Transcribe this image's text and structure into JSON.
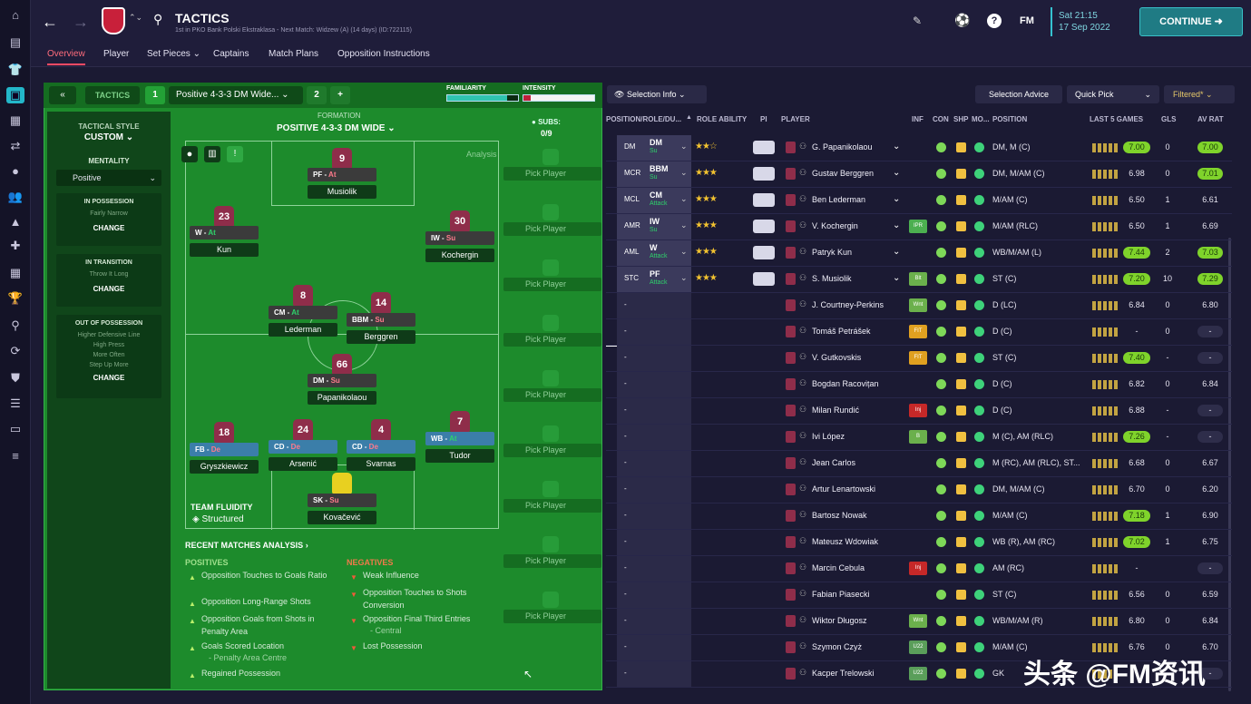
{
  "left_rail_icons": [
    "home-icon",
    "inbox-icon",
    "squad-icon",
    "tactics-icon",
    "report-icon",
    "transfers-icon",
    "ball-icon",
    "staff-icon",
    "training-icon",
    "medical-icon",
    "calendar-icon",
    "trophy-icon",
    "search-icon",
    "finance-icon",
    "club-icon",
    "scouting-icon",
    "ticket-icon",
    "menu-icon"
  ],
  "header": {
    "title": "TACTICS",
    "subtitle": "1st in PKO Bank Polski Ekstraklasa - Next Match: Widzew (A) (14 days) (ID:722115)",
    "fm_label": "FM",
    "time": "Sat 21:15",
    "date": "17 Sep 2022",
    "continue_label": "CONTINUE"
  },
  "nav_tabs": [
    "Overview",
    "Player",
    "Set Pieces",
    "Captains",
    "Match Plans",
    "Opposition Instructions"
  ],
  "tactics_bar": {
    "label": "TACTICS",
    "slot1": "1",
    "tactic_name": "Positive 4-3-3 DM Wide...",
    "slot2": "2",
    "add": "+",
    "familiarity": "FAMILIARITY",
    "intensity": "INTENSITY"
  },
  "style": {
    "tactical_style_label": "TACTICAL STYLE",
    "tactical_style_value": "CUSTOM",
    "mentality_label": "MENTALITY",
    "mentality_value": "Positive",
    "in_possession_label": "IN POSSESSION",
    "in_possession_text": "Fairly Narrow",
    "in_transition_label": "IN TRANSITION",
    "in_transition_text": "Throw It Long",
    "out_possession_label": "OUT OF POSSESSION",
    "out_possession_lines": [
      "Higher Defensive Line",
      "High Press",
      "More Often",
      "Step Up More"
    ],
    "change": "CHANGE"
  },
  "formation": {
    "label": "FORMATION",
    "value": "POSITIVE 4-3-3 DM WIDE",
    "subs_label": "SUBS:",
    "subs_value": "0/9",
    "analysis_label": "Analysis",
    "team_fluidity_label": "TEAM FLUIDITY",
    "team_fluidity_value": "Structured",
    "players": [
      {
        "num": "9",
        "role": "PF",
        "duty": "At",
        "name": "Musiolik",
        "color": "grey"
      },
      {
        "num": "23",
        "role": "W",
        "duty": "At",
        "name": "Kun",
        "color": "grey"
      },
      {
        "num": "30",
        "role": "IW",
        "duty": "Su",
        "name": "Kochergin",
        "color": "grey"
      },
      {
        "num": "8",
        "role": "CM",
        "duty": "At",
        "name": "Lederman",
        "color": "grey"
      },
      {
        "num": "14",
        "role": "BBM",
        "duty": "Su",
        "name": "Berggren",
        "color": "grey"
      },
      {
        "num": "66",
        "role": "DM",
        "duty": "Su",
        "name": "Papanikolaou",
        "color": "grey"
      },
      {
        "num": "18",
        "role": "FB",
        "duty": "De",
        "name": "Gryszkiewicz",
        "color": "blue"
      },
      {
        "num": "24",
        "role": "CD",
        "duty": "De",
        "name": "Arsenić",
        "color": "blue"
      },
      {
        "num": "4",
        "role": "CD",
        "duty": "De",
        "name": "Svarnas",
        "color": "blue"
      },
      {
        "num": "7",
        "role": "WB",
        "duty": "At",
        "name": "Tudor",
        "color": "blue"
      },
      {
        "num": "1",
        "role": "SK",
        "duty": "Su",
        "name": "Kovačević",
        "color": "grey"
      }
    ],
    "pick_player": "Pick Player"
  },
  "analysis": {
    "title": "RECENT MATCHES ANALYSIS",
    "positives_label": "POSITIVES",
    "positives": [
      "Opposition Touches to Goals Ratio",
      "Opposition Long-Range Shots",
      "Opposition Goals from Shots in Penalty Area",
      "Goals Scored Location",
      "- Penalty Area Centre",
      "Regained Possession"
    ],
    "negatives_label": "NEGATIVES",
    "negatives": [
      "Weak Influence",
      "Opposition Touches to Shots Conversion",
      "Opposition Final Third Entries",
      "- Central",
      "Lost Possession"
    ]
  },
  "table_toolbar": {
    "selection_info": "Selection Info",
    "selection_advice": "Selection Advice",
    "quick_pick": "Quick Pick",
    "filtered": "Filtered*"
  },
  "table_headers": [
    "POSITION/ROLE/DU...",
    "ROLE ABILITY",
    "PI",
    "PLAYER",
    "INF",
    "CON",
    "SHP",
    "MO...",
    "POSITION",
    "LAST 5 GAMES",
    "GLS",
    "AV RAT"
  ],
  "rows": [
    {
      "pos": "DM",
      "role": "DM",
      "duty": "Su",
      "stars": "★★☆",
      "name": "G. Papanikolaou",
      "inf": "",
      "position": "DM, M (C)",
      "avg": "7.00",
      "avg_hl": true,
      "gls": "0",
      "ar": "7.00",
      "ar_hl": true
    },
    {
      "pos": "MCR",
      "role": "BBM",
      "duty": "Su",
      "stars": "★★★",
      "name": "Gustav Berggren",
      "inf": "",
      "position": "DM, M/AM (C)",
      "avg": "6.98",
      "avg_hl": false,
      "gls": "0",
      "ar": "7.01",
      "ar_hl": true
    },
    {
      "pos": "MCL",
      "role": "CM",
      "duty": "Attack",
      "stars": "★★★",
      "name": "Ben Lederman",
      "inf": "",
      "position": "M/AM (C)",
      "avg": "6.50",
      "avg_hl": false,
      "gls": "1",
      "ar": "6.61",
      "ar_hl": false
    },
    {
      "pos": "AMR",
      "role": "IW",
      "duty": "Su",
      "stars": "★★★",
      "name": "V. Kochergin",
      "inf": "IPR",
      "position": "M/AM (RLC)",
      "avg": "6.50",
      "avg_hl": false,
      "gls": "1",
      "ar": "6.69",
      "ar_hl": false
    },
    {
      "pos": "AML",
      "role": "W",
      "duty": "Attack",
      "stars": "★★★",
      "name": "Patryk Kun",
      "inf": "",
      "position": "WB/M/AM (L)",
      "avg": "7.44",
      "avg_hl": true,
      "gls": "2",
      "ar": "7.03",
      "ar_hl": true
    },
    {
      "pos": "STC",
      "role": "PF",
      "duty": "Attack",
      "stars": "★★★",
      "name": "S. Musiolik",
      "inf": "Blt",
      "position": "ST (C)",
      "avg": "7.20",
      "avg_hl": true,
      "gls": "10",
      "ar": "7.29",
      "ar_hl": true
    },
    {
      "pos": "-",
      "role": "",
      "duty": "",
      "stars": "",
      "name": "J. Courtney-Perkins",
      "inf": "Wnt",
      "position": "D (LC)",
      "avg": "6.84",
      "avg_hl": false,
      "gls": "0",
      "ar": "6.80",
      "ar_hl": false
    },
    {
      "pos": "-",
      "role": "",
      "duty": "",
      "stars": "",
      "name": "Tomáš Petrášek",
      "inf": "FIT",
      "position": "D (C)",
      "avg": "-",
      "avg_hl": false,
      "gls": "0",
      "ar": "-",
      "ar_hl": false
    },
    {
      "pos": "-",
      "role": "",
      "duty": "",
      "stars": "",
      "name": "V. Gutkovskis",
      "inf": "FIT",
      "position": "ST (C)",
      "avg": "7.40",
      "avg_hl": true,
      "gls": "-",
      "ar": "-",
      "ar_hl": false
    },
    {
      "pos": "-",
      "role": "",
      "duty": "",
      "stars": "",
      "name": "Bogdan Racovițan",
      "inf": "",
      "position": "D (C)",
      "avg": "6.82",
      "avg_hl": false,
      "gls": "0",
      "ar": "6.84",
      "ar_hl": false
    },
    {
      "pos": "-",
      "role": "",
      "duty": "",
      "stars": "",
      "name": "Milan Rundić",
      "inf": "Inj",
      "position": "D (C)",
      "avg": "6.88",
      "avg_hl": false,
      "gls": "-",
      "ar": "-",
      "ar_hl": false
    },
    {
      "pos": "-",
      "role": "",
      "duty": "",
      "stars": "",
      "name": "Ivi López",
      "inf": "B",
      "position": "M (C), AM (RLC)",
      "avg": "7.26",
      "avg_hl": true,
      "gls": "-",
      "ar": "-",
      "ar_hl": false
    },
    {
      "pos": "-",
      "role": "",
      "duty": "",
      "stars": "",
      "name": "Jean Carlos",
      "inf": "",
      "position": "M (RC), AM (RLC), ST...",
      "avg": "6.68",
      "avg_hl": false,
      "gls": "0",
      "ar": "6.67",
      "ar_hl": false
    },
    {
      "pos": "-",
      "role": "",
      "duty": "",
      "stars": "",
      "name": "Artur Lenartowski",
      "inf": "",
      "position": "DM, M/AM (C)",
      "avg": "6.70",
      "avg_hl": false,
      "gls": "0",
      "ar": "6.20",
      "ar_hl": false
    },
    {
      "pos": "-",
      "role": "",
      "duty": "",
      "stars": "",
      "name": "Bartosz Nowak",
      "inf": "",
      "position": "M/AM (C)",
      "avg": "7.18",
      "avg_hl": true,
      "gls": "1",
      "ar": "6.90",
      "ar_hl": false
    },
    {
      "pos": "-",
      "role": "",
      "duty": "",
      "stars": "",
      "name": "Mateusz Wdowiak",
      "inf": "",
      "position": "WB (R), AM (RC)",
      "avg": "7.02",
      "avg_hl": true,
      "gls": "1",
      "ar": "6.75",
      "ar_hl": false
    },
    {
      "pos": "-",
      "role": "",
      "duty": "",
      "stars": "",
      "name": "Marcin Cebula",
      "inf": "Inj",
      "position": "AM (RC)",
      "avg": "-",
      "avg_hl": false,
      "gls": "",
      "ar": "-",
      "ar_hl": false
    },
    {
      "pos": "-",
      "role": "",
      "duty": "",
      "stars": "",
      "name": "Fabian Piasecki",
      "inf": "",
      "position": "ST (C)",
      "avg": "6.56",
      "avg_hl": false,
      "gls": "0",
      "ar": "6.59",
      "ar_hl": false
    },
    {
      "pos": "-",
      "role": "",
      "duty": "",
      "stars": "",
      "name": "Wiktor Długosz",
      "inf": "Wnt",
      "position": "WB/M/AM (R)",
      "avg": "6.80",
      "avg_hl": false,
      "gls": "0",
      "ar": "6.84",
      "ar_hl": false
    },
    {
      "pos": "-",
      "role": "",
      "duty": "",
      "stars": "",
      "name": "Szymon Czyż",
      "inf": "U22",
      "position": "M/AM (C)",
      "avg": "6.76",
      "avg_hl": false,
      "gls": "0",
      "ar": "6.70",
      "ar_hl": false
    },
    {
      "pos": "-",
      "role": "",
      "duty": "",
      "stars": "",
      "name": "Kacper Trelowski",
      "inf": "U22",
      "position": "GK",
      "avg": "-",
      "avg_hl": false,
      "gls": "",
      "ar": "-",
      "ar_hl": false
    }
  ],
  "watermark": "头条 @FM资讯"
}
